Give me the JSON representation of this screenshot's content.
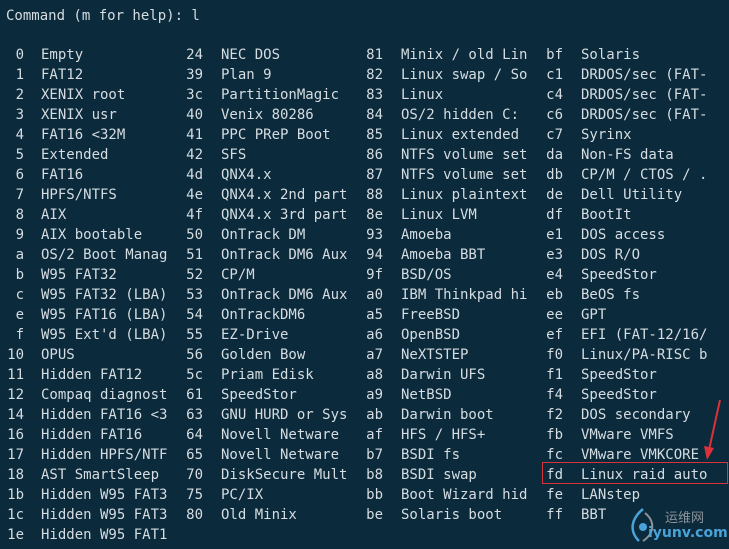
{
  "prompt": "Command (m for help): l",
  "columns": [
    [
      {
        "code": "0",
        "name": "Empty"
      },
      {
        "code": "1",
        "name": "FAT12"
      },
      {
        "code": "2",
        "name": "XENIX root"
      },
      {
        "code": "3",
        "name": "XENIX usr"
      },
      {
        "code": "4",
        "name": "FAT16 <32M"
      },
      {
        "code": "5",
        "name": "Extended"
      },
      {
        "code": "6",
        "name": "FAT16"
      },
      {
        "code": "7",
        "name": "HPFS/NTFS"
      },
      {
        "code": "8",
        "name": "AIX"
      },
      {
        "code": "9",
        "name": "AIX bootable"
      },
      {
        "code": "a",
        "name": "OS/2 Boot Manag"
      },
      {
        "code": "b",
        "name": "W95 FAT32"
      },
      {
        "code": "c",
        "name": "W95 FAT32 (LBA)"
      },
      {
        "code": "e",
        "name": "W95 FAT16 (LBA)"
      },
      {
        "code": "f",
        "name": "W95 Ext'd (LBA)"
      },
      {
        "code": "10",
        "name": "OPUS"
      },
      {
        "code": "11",
        "name": "Hidden FAT12"
      },
      {
        "code": "12",
        "name": "Compaq diagnost"
      },
      {
        "code": "14",
        "name": "Hidden FAT16 <3"
      },
      {
        "code": "16",
        "name": "Hidden FAT16"
      },
      {
        "code": "17",
        "name": "Hidden HPFS/NTF"
      },
      {
        "code": "18",
        "name": "AST SmartSleep"
      },
      {
        "code": "1b",
        "name": "Hidden W95 FAT3"
      },
      {
        "code": "1c",
        "name": "Hidden W95 FAT3"
      },
      {
        "code": "1e",
        "name": "Hidden W95 FAT1"
      }
    ],
    [
      {
        "code": "24",
        "name": "NEC DOS"
      },
      {
        "code": "39",
        "name": "Plan 9"
      },
      {
        "code": "3c",
        "name": "PartitionMagic"
      },
      {
        "code": "40",
        "name": "Venix 80286"
      },
      {
        "code": "41",
        "name": "PPC PReP Boot"
      },
      {
        "code": "42",
        "name": "SFS"
      },
      {
        "code": "4d",
        "name": "QNX4.x"
      },
      {
        "code": "4e",
        "name": "QNX4.x 2nd part"
      },
      {
        "code": "4f",
        "name": "QNX4.x 3rd part"
      },
      {
        "code": "50",
        "name": "OnTrack DM"
      },
      {
        "code": "51",
        "name": "OnTrack DM6 Aux"
      },
      {
        "code": "52",
        "name": "CP/M"
      },
      {
        "code": "53",
        "name": "OnTrack DM6 Aux"
      },
      {
        "code": "54",
        "name": "OnTrackDM6"
      },
      {
        "code": "55",
        "name": "EZ-Drive"
      },
      {
        "code": "56",
        "name": "Golden Bow"
      },
      {
        "code": "5c",
        "name": "Priam Edisk"
      },
      {
        "code": "61",
        "name": "SpeedStor"
      },
      {
        "code": "63",
        "name": "GNU HURD or Sys"
      },
      {
        "code": "64",
        "name": "Novell Netware"
      },
      {
        "code": "65",
        "name": "Novell Netware"
      },
      {
        "code": "70",
        "name": "DiskSecure Mult"
      },
      {
        "code": "75",
        "name": "PC/IX"
      },
      {
        "code": "80",
        "name": "Old Minix"
      }
    ],
    [
      {
        "code": "81",
        "name": "Minix / old Lin"
      },
      {
        "code": "82",
        "name": "Linux swap / So"
      },
      {
        "code": "83",
        "name": "Linux"
      },
      {
        "code": "84",
        "name": "OS/2 hidden C:"
      },
      {
        "code": "85",
        "name": "Linux extended"
      },
      {
        "code": "86",
        "name": "NTFS volume set"
      },
      {
        "code": "87",
        "name": "NTFS volume set"
      },
      {
        "code": "88",
        "name": "Linux plaintext"
      },
      {
        "code": "8e",
        "name": "Linux LVM"
      },
      {
        "code": "93",
        "name": "Amoeba"
      },
      {
        "code": "94",
        "name": "Amoeba BBT"
      },
      {
        "code": "9f",
        "name": "BSD/OS"
      },
      {
        "code": "a0",
        "name": "IBM Thinkpad hi"
      },
      {
        "code": "a5",
        "name": "FreeBSD"
      },
      {
        "code": "a6",
        "name": "OpenBSD"
      },
      {
        "code": "a7",
        "name": "NeXTSTEP"
      },
      {
        "code": "a8",
        "name": "Darwin UFS"
      },
      {
        "code": "a9",
        "name": "NetBSD"
      },
      {
        "code": "ab",
        "name": "Darwin boot"
      },
      {
        "code": "af",
        "name": "HFS / HFS+"
      },
      {
        "code": "b7",
        "name": "BSDI fs"
      },
      {
        "code": "b8",
        "name": "BSDI swap"
      },
      {
        "code": "bb",
        "name": "Boot Wizard hid"
      },
      {
        "code": "be",
        "name": "Solaris boot"
      }
    ],
    [
      {
        "code": "bf",
        "name": "Solaris"
      },
      {
        "code": "c1",
        "name": "DRDOS/sec (FAT-"
      },
      {
        "code": "c4",
        "name": "DRDOS/sec (FAT-"
      },
      {
        "code": "c6",
        "name": "DRDOS/sec (FAT-"
      },
      {
        "code": "c7",
        "name": "Syrinx"
      },
      {
        "code": "da",
        "name": "Non-FS data"
      },
      {
        "code": "db",
        "name": "CP/M / CTOS / ."
      },
      {
        "code": "de",
        "name": "Dell Utility"
      },
      {
        "code": "df",
        "name": "BootIt"
      },
      {
        "code": "e1",
        "name": "DOS access"
      },
      {
        "code": "e3",
        "name": "DOS R/O"
      },
      {
        "code": "e4",
        "name": "SpeedStor"
      },
      {
        "code": "eb",
        "name": "BeOS fs"
      },
      {
        "code": "ee",
        "name": "GPT"
      },
      {
        "code": "ef",
        "name": "EFI (FAT-12/16/"
      },
      {
        "code": "f0",
        "name": "Linux/PA-RISC b"
      },
      {
        "code": "f1",
        "name": "SpeedStor"
      },
      {
        "code": "f4",
        "name": "SpeedStor"
      },
      {
        "code": "f2",
        "name": "DOS secondary"
      },
      {
        "code": "fb",
        "name": "VMware VMFS"
      },
      {
        "code": "fc",
        "name": "VMware VMKCORE"
      },
      {
        "code": "fd",
        "name": "Linux raid auto"
      },
      {
        "code": "fe",
        "name": "LANstep"
      },
      {
        "code": "ff",
        "name": "BBT"
      }
    ]
  ],
  "highlight": {
    "code": "fd",
    "color": "#d9323a"
  },
  "watermark": {
    "text_cn": "运维网",
    "text_en": "iyunv.com"
  },
  "colors": {
    "background": "#0b2a3b",
    "text": "#d6dde2",
    "highlight_box": "#d9323a",
    "watermark_en": "#4aa3d8"
  }
}
